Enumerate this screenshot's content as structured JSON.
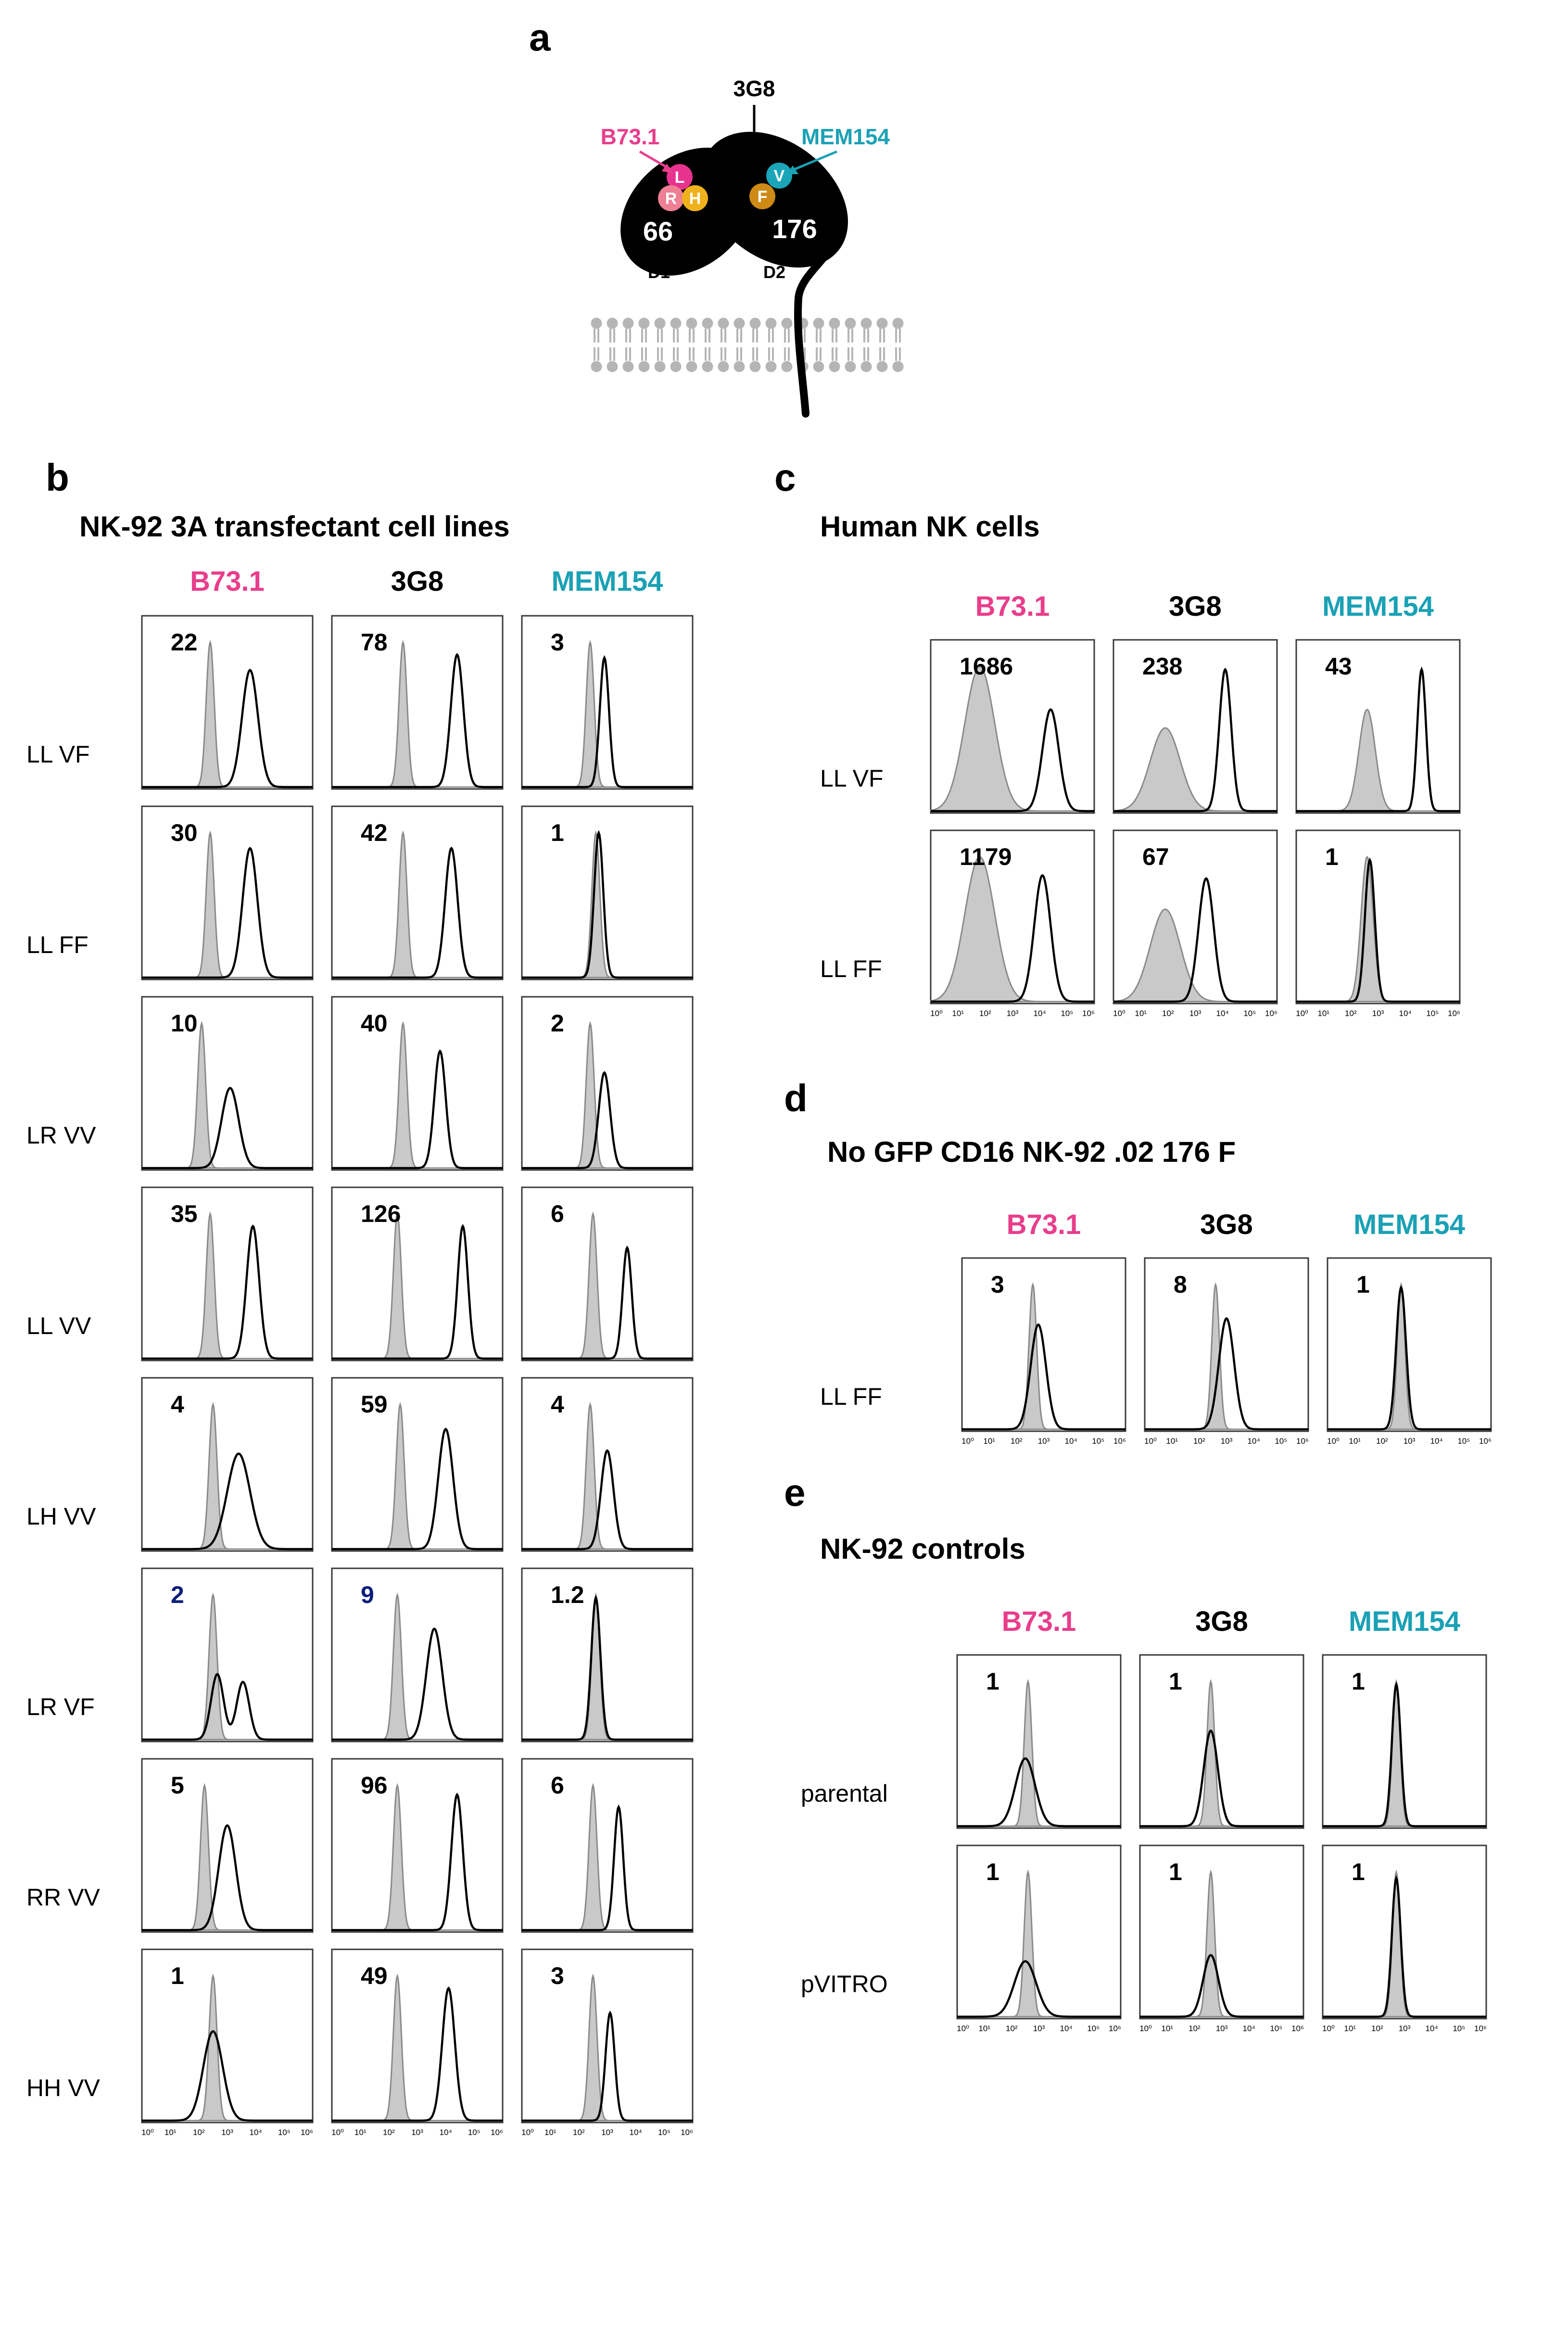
{
  "colors": {
    "b73": "#e83e8c",
    "mem154": "#1ba1b5",
    "black": "#000000",
    "filled": "#c9c9c9",
    "filled_edge": "#8a8a8a",
    "blue_label": "#0a1e7a",
    "membrane": "#b5b5b5"
  },
  "panel_a": {
    "letter": "a",
    "antibody_top": "3G8",
    "antibody_left": "B73.1",
    "antibody_right": "MEM154",
    "residues_d1": [
      "L",
      "R",
      "H"
    ],
    "residues_d2": [
      "V",
      "F"
    ],
    "d1_number": "66",
    "d2_number": "176",
    "d1_label": "D1",
    "d2_label": "D2"
  },
  "chart_data": [
    {
      "type": "histogram-grid",
      "panel": "b",
      "title": "NK-92 3A transfectant cell lines",
      "columns": [
        "B73.1",
        "3G8",
        "MEM154"
      ],
      "x_ticks": [
        "10⁰",
        "10¹",
        "10²",
        "10³",
        "10⁴",
        "10⁵",
        "10⁶"
      ],
      "xlim_log10": [
        0,
        6
      ],
      "rows": [
        {
          "label": "LL VF",
          "cells": [
            {
              "value": "22",
              "control_peak": 2.4,
              "stain_peak": 3.8,
              "stain_width": 0.28,
              "stain_height": 0.76
            },
            {
              "value": "78",
              "control_peak": 2.5,
              "stain_peak": 4.4,
              "stain_width": 0.22,
              "stain_height": 0.86
            },
            {
              "value": "3",
              "control_peak": 2.4,
              "stain_peak": 2.9,
              "stain_width": 0.16,
              "stain_height": 0.84
            }
          ]
        },
        {
          "label": "LL FF",
          "cells": [
            {
              "value": "30",
              "control_peak": 2.4,
              "stain_peak": 3.8,
              "stain_width": 0.26,
              "stain_height": 0.84
            },
            {
              "value": "42",
              "control_peak": 2.5,
              "stain_peak": 4.2,
              "stain_width": 0.22,
              "stain_height": 0.84
            },
            {
              "value": "1",
              "control_peak": 2.6,
              "stain_peak": 2.7,
              "stain_width": 0.16,
              "stain_height": 0.94
            }
          ]
        },
        {
          "label": "LR VV",
          "cells": [
            {
              "value": "10",
              "control_peak": 2.1,
              "stain_peak": 3.1,
              "stain_width": 0.3,
              "stain_height": 0.52
            },
            {
              "value": "40",
              "control_peak": 2.5,
              "stain_peak": 3.8,
              "stain_width": 0.2,
              "stain_height": 0.76
            },
            {
              "value": "2",
              "control_peak": 2.4,
              "stain_peak": 2.9,
              "stain_width": 0.2,
              "stain_height": 0.62
            }
          ]
        },
        {
          "label": "LL VV",
          "cells": [
            {
              "value": "35",
              "control_peak": 2.4,
              "stain_peak": 3.9,
              "stain_width": 0.22,
              "stain_height": 0.86
            },
            {
              "value": "126",
              "control_peak": 2.3,
              "stain_peak": 4.6,
              "stain_width": 0.18,
              "stain_height": 0.86
            },
            {
              "value": "6",
              "control_peak": 2.5,
              "stain_peak": 3.7,
              "stain_width": 0.16,
              "stain_height": 0.72
            }
          ]
        },
        {
          "label": "LH VV",
          "cells": [
            {
              "value": "4",
              "control_peak": 2.5,
              "stain_peak": 3.4,
              "stain_width": 0.4,
              "stain_height": 0.62
            },
            {
              "value": "59",
              "control_peak": 2.4,
              "stain_peak": 4.0,
              "stain_width": 0.26,
              "stain_height": 0.78
            },
            {
              "value": "4",
              "control_peak": 2.4,
              "stain_peak": 3.0,
              "stain_width": 0.22,
              "stain_height": 0.64
            }
          ]
        },
        {
          "label": "LR VF",
          "cells": [
            {
              "value": "2",
              "value_color": "#0a1e7a",
              "control_peak": 2.5,
              "stain_peak": 3.2,
              "stain_width": 0.5,
              "stain_height": 0.5,
              "bimodal": true
            },
            {
              "value": "9",
              "value_color": "#0a1e7a",
              "control_peak": 2.3,
              "stain_peak": 3.6,
              "stain_width": 0.28,
              "stain_height": 0.72
            },
            {
              "value": "1.2",
              "control_peak": 2.6,
              "stain_peak": 2.6,
              "stain_width": 0.16,
              "stain_height": 0.92
            }
          ]
        },
        {
          "label": "RR VV",
          "cells": [
            {
              "value": "5",
              "control_peak": 2.2,
              "stain_peak": 3.0,
              "stain_width": 0.3,
              "stain_height": 0.68
            },
            {
              "value": "96",
              "control_peak": 2.3,
              "stain_peak": 4.4,
              "stain_width": 0.2,
              "stain_height": 0.88
            },
            {
              "value": "6",
              "control_peak": 2.5,
              "stain_peak": 3.4,
              "stain_width": 0.16,
              "stain_height": 0.8
            }
          ]
        },
        {
          "label": "HH VV",
          "cells": [
            {
              "value": "1",
              "control_peak": 2.5,
              "stain_peak": 2.5,
              "stain_width": 0.34,
              "stain_height": 0.58
            },
            {
              "value": "49",
              "control_peak": 2.3,
              "stain_peak": 4.1,
              "stain_width": 0.22,
              "stain_height": 0.86
            },
            {
              "value": "3",
              "control_peak": 2.5,
              "stain_peak": 3.1,
              "stain_width": 0.16,
              "stain_height": 0.7
            }
          ]
        }
      ]
    },
    {
      "type": "histogram-grid",
      "panel": "c",
      "title": "Human NK cells",
      "columns": [
        "B73.1",
        "3G8",
        "MEM154"
      ],
      "x_ticks": [
        "10⁰",
        "10¹",
        "10²",
        "10³",
        "10⁴",
        "10⁵",
        "10⁶"
      ],
      "xlim_log10": [
        0,
        6
      ],
      "rows": [
        {
          "label": "LL VF",
          "cells": [
            {
              "value": "1686",
              "control_peak": 1.8,
              "control_width": 0.55,
              "stain_peak": 4.4,
              "stain_width": 0.3,
              "stain_height": 0.66
            },
            {
              "value": "238",
              "control_peak": 1.9,
              "control_width": 0.55,
              "control_height": 0.54,
              "stain_peak": 4.1,
              "stain_width": 0.22,
              "stain_height": 0.92
            },
            {
              "value": "43",
              "control_peak": 2.6,
              "control_width": 0.3,
              "control_height": 0.66,
              "stain_peak": 4.6,
              "stain_width": 0.16,
              "stain_height": 0.92
            }
          ]
        },
        {
          "label": "LL FF",
          "cells": [
            {
              "value": "1179",
              "control_peak": 1.8,
              "control_width": 0.55,
              "stain_peak": 4.1,
              "stain_width": 0.3,
              "stain_height": 0.82
            },
            {
              "value": "67",
              "control_peak": 1.9,
              "control_width": 0.55,
              "control_height": 0.6,
              "stain_peak": 3.4,
              "stain_width": 0.28,
              "stain_height": 0.8
            },
            {
              "value": "1",
              "control_peak": 2.6,
              "control_width": 0.22,
              "stain_peak": 2.7,
              "stain_width": 0.18,
              "stain_height": 0.92
            }
          ]
        }
      ]
    },
    {
      "type": "histogram-grid",
      "panel": "d",
      "title": "No GFP CD16 NK-92 .02 176 F",
      "columns": [
        "B73.1",
        "3G8",
        "MEM154"
      ],
      "x_ticks": [
        "10⁰",
        "10¹",
        "10²",
        "10³",
        "10⁴",
        "10⁵",
        "10⁶"
      ],
      "xlim_log10": [
        0,
        6
      ],
      "rows": [
        {
          "label": "LL FF",
          "cells": [
            {
              "value": "3",
              "control_peak": 2.6,
              "stain_peak": 2.8,
              "stain_width": 0.28,
              "stain_height": 0.68
            },
            {
              "value": "8",
              "control_peak": 2.6,
              "stain_peak": 3.0,
              "stain_width": 0.28,
              "stain_height": 0.72
            },
            {
              "value": "1",
              "control_peak": 2.7,
              "stain_peak": 2.7,
              "stain_width": 0.18,
              "stain_height": 0.92
            }
          ]
        }
      ]
    },
    {
      "type": "histogram-grid",
      "panel": "e",
      "title": "NK-92 controls",
      "columns": [
        "B73.1",
        "3G8",
        "MEM154"
      ],
      "x_ticks": [
        "10⁰",
        "10¹",
        "10²",
        "10³",
        "10⁴",
        "10⁵",
        "10⁶"
      ],
      "xlim_log10": [
        0,
        6
      ],
      "rows": [
        {
          "label": "parental",
          "cells": [
            {
              "value": "1",
              "control_peak": 2.6,
              "stain_peak": 2.5,
              "stain_width": 0.36,
              "stain_height": 0.44
            },
            {
              "value": "1",
              "control_peak": 2.6,
              "stain_peak": 2.6,
              "stain_width": 0.26,
              "stain_height": 0.62
            },
            {
              "value": "1",
              "control_peak": 2.7,
              "stain_peak": 2.7,
              "stain_width": 0.16,
              "stain_height": 0.92
            }
          ]
        },
        {
          "label": "pVITRO",
          "cells": [
            {
              "value": "1",
              "control_peak": 2.6,
              "stain_peak": 2.5,
              "stain_width": 0.4,
              "stain_height": 0.36
            },
            {
              "value": "1",
              "control_peak": 2.6,
              "stain_peak": 2.6,
              "stain_width": 0.28,
              "stain_height": 0.4
            },
            {
              "value": "1",
              "control_peak": 2.7,
              "stain_peak": 2.7,
              "stain_width": 0.16,
              "stain_height": 0.9
            }
          ]
        }
      ]
    }
  ]
}
